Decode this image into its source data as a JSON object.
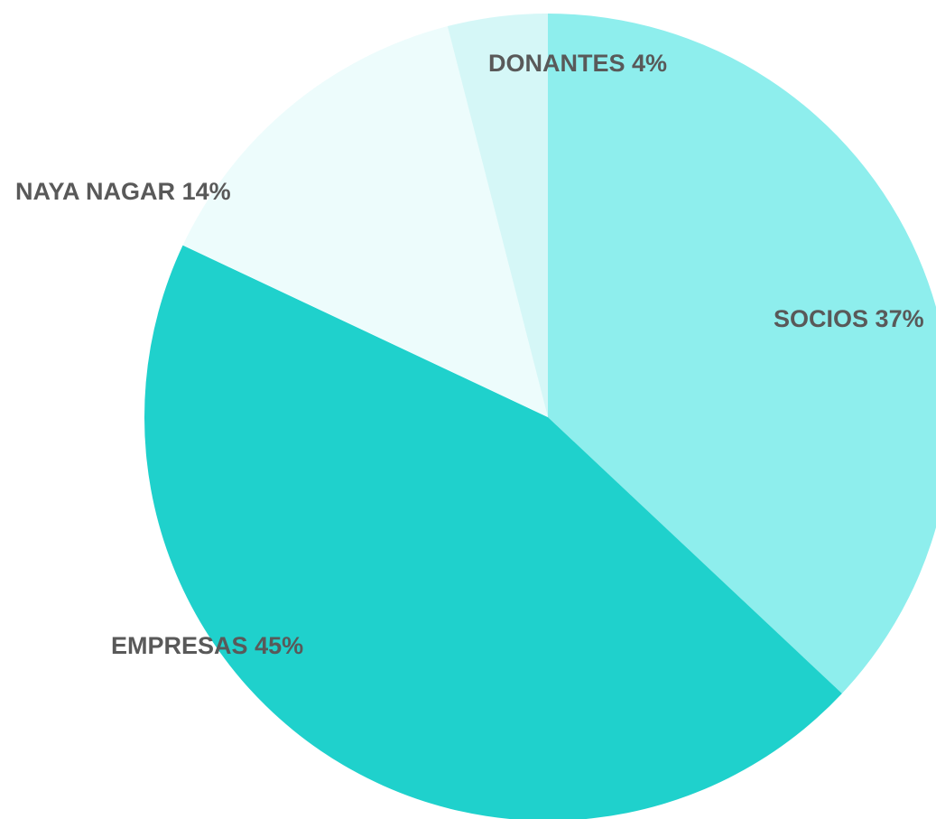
{
  "chart_data": {
    "type": "pie",
    "categories": [
      "SOCIOS",
      "EMPRESAS",
      "NAYA NAGAR",
      "DONANTES"
    ],
    "values": [
      37,
      45,
      14,
      4
    ],
    "value_labels": [
      "37%",
      "45%",
      "14%",
      "4%"
    ],
    "colors": [
      "#8eeeed",
      "#1fd1cc",
      "#edfcfc",
      "#d5f7f7"
    ]
  }
}
